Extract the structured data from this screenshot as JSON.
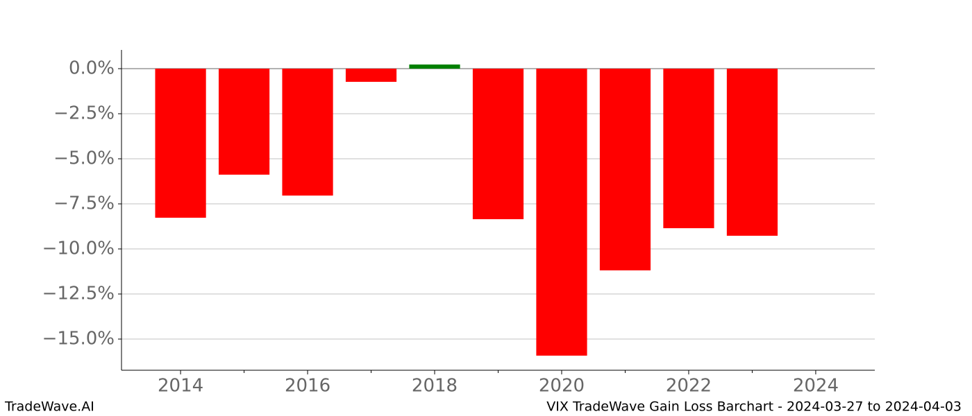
{
  "chart_data": {
    "type": "bar",
    "title": "VIX TradeWave Gain Loss Barchart - 2024-03-27 to 2024-04-03",
    "brand": "TradeWave.AI",
    "x": [
      2014,
      2015,
      2016,
      2017,
      2018,
      2019,
      2020,
      2021,
      2022,
      2023
    ],
    "values": [
      -8.27,
      -5.88,
      -7.04,
      -0.73,
      0.23,
      -8.35,
      -15.92,
      -11.19,
      -8.85,
      -9.27
    ],
    "colors": [
      "#ff0000",
      "#ff0000",
      "#ff0000",
      "#ff0000",
      "#008000",
      "#ff0000",
      "#ff0000",
      "#ff0000",
      "#ff0000",
      "#ff0000"
    ],
    "xlim": [
      2013.07,
      2024.93
    ],
    "xticks": [
      2014,
      2016,
      2018,
      2020,
      2022,
      2024
    ],
    "xminorticks": [
      2015,
      2017,
      2019,
      2021,
      2023
    ],
    "ylim": [
      -16.73,
      1.04
    ],
    "yticks": [
      {
        "value": 0,
        "label": "0.0%"
      },
      {
        "value": -2.5,
        "label": "−2.5%"
      },
      {
        "value": -5,
        "label": "−5.0%"
      },
      {
        "value": -7.5,
        "label": "−7.5%"
      },
      {
        "value": -10,
        "label": "−10.0%"
      },
      {
        "value": -12.5,
        "label": "−12.5%"
      },
      {
        "value": -15,
        "label": "−15.0%"
      }
    ],
    "grid": true
  }
}
